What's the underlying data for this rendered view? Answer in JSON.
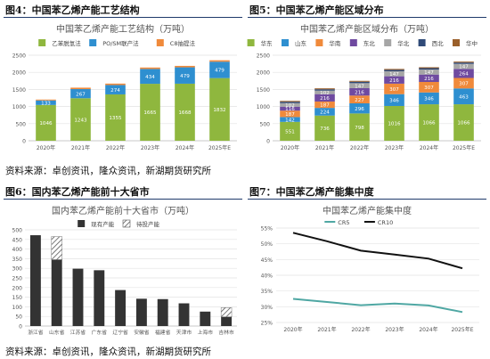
{
  "figures": {
    "fig4_title": "图4：中国苯乙烯产能工艺结构",
    "fig5_title": "图5：中国苯乙烯产能区域分布",
    "fig6_title": "图6：国内苯乙烯产能前十大省市",
    "fig7_title": "图7：中国苯乙烯产能集中度",
    "source_top": "资料来源：卓创资讯，隆众资讯，新湖期货研究所",
    "source_bottom": "资料来源：卓创资讯，隆众资讯，新湖期货研究所"
  },
  "colors": {
    "green": "#8fb73e",
    "blue": "#2e8fd0",
    "orange": "#f08a3b",
    "gray": "#a6a6a6",
    "navy": "#2f4a78",
    "brown": "#9a5f2a",
    "purple": "#6f4aa0",
    "dark": "#333333",
    "teal": "#4fa7a3",
    "black": "#111111",
    "rule": "#1f3a6b"
  },
  "chart_data": [
    {
      "id": "fig4",
      "type": "bar",
      "stacked": true,
      "title": "中国苯乙烯产能工艺结构（万吨）",
      "categories": [
        "2020年",
        "2021年",
        "2022年",
        "2023年",
        "2024年",
        "2025年E"
      ],
      "series": [
        {
          "name": "乙苯脱氢法",
          "color": "#8fb73e",
          "values": [
            1046,
            1243,
            1355,
            1665,
            1668,
            1832
          ]
        },
        {
          "name": "PO/SM联产法",
          "color": "#2e8fd0",
          "values": [
            133,
            267,
            274,
            434,
            479,
            479
          ]
        },
        {
          "name": "C8抽提法",
          "color": "#f08a3b",
          "values": [
            25,
            42,
            42,
            42,
            42,
            42
          ]
        }
      ],
      "data_labels": [
        [
          "1046",
          "1243",
          "1355",
          "1665",
          "1668",
          "1832"
        ],
        [
          "133",
          "267",
          "274",
          "434",
          "479",
          "479"
        ],
        [
          "",
          "",
          "",
          "",
          "",
          ""
        ]
      ],
      "ylim": [
        0,
        2500
      ],
      "yticks": [
        "0",
        "500",
        "1000",
        "1500",
        "2000",
        "2500"
      ],
      "grid": true,
      "legend": "top"
    },
    {
      "id": "fig5",
      "type": "bar",
      "stacked": true,
      "title": "中国苯乙烯产能区域分布（万吨）",
      "categories": [
        "2020年",
        "2021年",
        "2022年",
        "2023年",
        "2024年",
        "2025年E"
      ],
      "series": [
        {
          "name": "华东",
          "color": "#8fb73e",
          "values": [
            551,
            736,
            798,
            1016,
            1066,
            1066
          ]
        },
        {
          "name": "山东",
          "color": "#2e8fd0",
          "values": [
            142,
            224,
            296,
            346,
            346,
            463
          ]
        },
        {
          "name": "华南",
          "color": "#f08a3b",
          "values": [
            187,
            187,
            227,
            307,
            307,
            307
          ]
        },
        {
          "name": "东北",
          "color": "#6f4aa0",
          "values": [
            116,
            216,
            216,
            216,
            216,
            264
          ]
        },
        {
          "name": "华北",
          "color": "#a6a6a6",
          "values": [
            102,
            102,
            147,
            147,
            147,
            147
          ]
        },
        {
          "name": "西北",
          "color": "#2f4a78",
          "values": [
            40,
            40,
            40,
            40,
            40,
            40
          ]
        },
        {
          "name": "华中",
          "color": "#9a5f2a",
          "values": [
            27,
            27,
            27,
            27,
            27,
            27
          ]
        }
      ],
      "data_labels": [
        [
          "551",
          "736",
          "798",
          "1016",
          "1066",
          "1066"
        ],
        [
          "142",
          "224",
          "296",
          "346",
          "346",
          "463"
        ],
        [
          "187",
          "187",
          "227",
          "307",
          "307",
          "307"
        ],
        [
          "116",
          "216",
          "216",
          "216",
          "216",
          "264"
        ],
        [
          "102",
          "102",
          "147",
          "147",
          "147",
          "147"
        ],
        [
          "",
          "",
          "",
          "",
          "",
          ""
        ],
        [
          "",
          "",
          "",
          "",
          "",
          ""
        ]
      ],
      "ylim": [
        0,
        2500
      ],
      "yticks": [
        "0",
        "500",
        "1000",
        "1500",
        "2000",
        "2500"
      ],
      "grid": true,
      "legend": "top"
    },
    {
      "id": "fig6",
      "type": "bar",
      "stacked": true,
      "title": "国内苯乙烯产能前十大省市（万吨）",
      "categories": [
        "浙江省",
        "山东省",
        "江苏省",
        "广东省",
        "辽宁省",
        "安徽省",
        "福建省",
        "天津市",
        "上海市",
        "吉林市"
      ],
      "series": [
        {
          "name": "现有产能",
          "color": "#333333",
          "pattern": "solid",
          "values": [
            472,
            345,
            298,
            290,
            187,
            142,
            140,
            118,
            75,
            48
          ]
        },
        {
          "name": "待投产能",
          "color": "#333333",
          "pattern": "hatch",
          "values": [
            0,
            120,
            0,
            0,
            0,
            0,
            0,
            0,
            0,
            48
          ]
        }
      ],
      "ylim": [
        0,
        500
      ],
      "yticks": [
        "0",
        "50",
        "100",
        "150",
        "200",
        "250",
        "300",
        "350",
        "400",
        "450",
        "500"
      ],
      "grid": true,
      "legend": "top"
    },
    {
      "id": "fig7",
      "type": "line",
      "title": "中国苯乙烯产能集中度",
      "x": [
        "2020年",
        "2021年",
        "2022年",
        "2023年",
        "2024年",
        "2025年E"
      ],
      "series": [
        {
          "name": "CR5",
          "color": "#4fa7a3",
          "values": [
            32.5,
            31.5,
            30.5,
            31.0,
            30.4,
            28.3
          ]
        },
        {
          "name": "CR10",
          "color": "#111111",
          "values": [
            53.5,
            50.8,
            47.8,
            46.6,
            45.3,
            42.2
          ]
        }
      ],
      "ylim": [
        25,
        55
      ],
      "yticks": [
        "25%",
        "30%",
        "35%",
        "40%",
        "45%",
        "50%",
        "55%"
      ],
      "grid": true,
      "legend": "top"
    }
  ]
}
